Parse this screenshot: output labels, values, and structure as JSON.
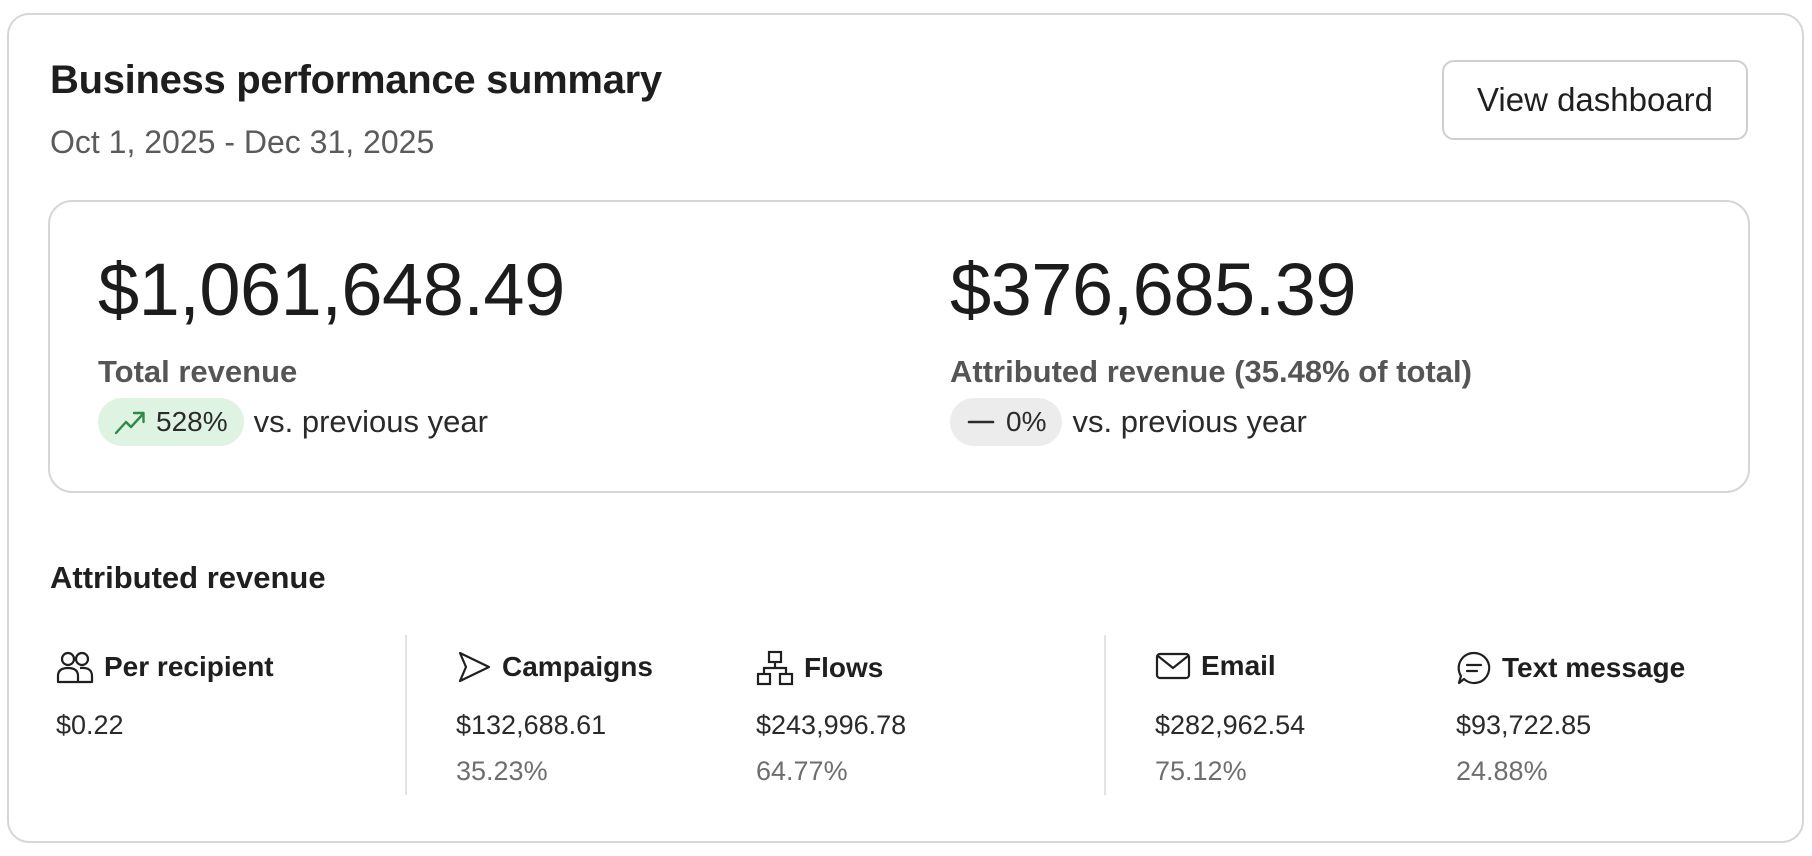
{
  "header": {
    "title": "Business performance summary",
    "date_range": "Oct 1, 2025 - Dec 31, 2025",
    "view_dashboard_label": "View dashboard"
  },
  "summary": {
    "total": {
      "value": "$1,061,648.49",
      "label": "Total revenue",
      "change": "528%",
      "change_icon": "trend-up-icon",
      "change_color": "#dff3e2",
      "comparison": "vs. previous year"
    },
    "attributed": {
      "value": "$376,685.39",
      "label": "Attributed revenue (35.48% of total)",
      "change": "0%",
      "change_icon": "dash-icon",
      "change_color": "#ececec",
      "comparison": "vs. previous year"
    }
  },
  "attributed_section": {
    "title": "Attributed revenue",
    "stats": [
      {
        "label": "Per recipient",
        "icon": "people-icon",
        "value": "$0.22",
        "percent": ""
      },
      {
        "label": "Campaigns",
        "icon": "send-icon",
        "value": "$132,688.61",
        "percent": "35.23%"
      },
      {
        "label": "Flows",
        "icon": "flow-icon",
        "value": "$243,996.78",
        "percent": "64.77%"
      },
      {
        "label": "Email",
        "icon": "envelope-icon",
        "value": "$282,962.54",
        "percent": "75.12%"
      },
      {
        "label": "Text message",
        "icon": "chat-icon",
        "value": "$93,722.85",
        "percent": "24.88%"
      }
    ]
  }
}
